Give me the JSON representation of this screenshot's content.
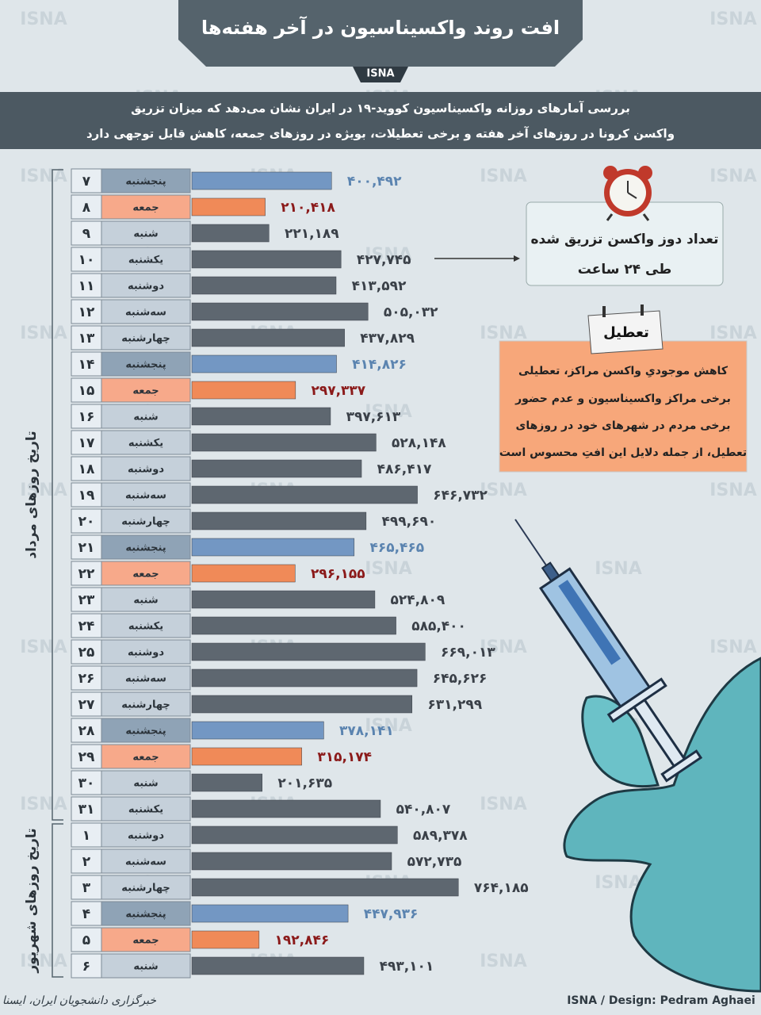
{
  "chart_data": {
    "type": "bar",
    "title": "افت روند واکسیناسیون در آخر هفته‌ها",
    "badge": "ISNA",
    "subtitle": [
      "بررسی آمارهای روزانه واکسیناسیون کووید-۱۹ در ایران نشان می‌دهد که میزان تزریق",
      "واکسن کرونا در روزهای آخر هفته و برخی تعطیلات، بویژه در روزهای جمعه، کاهش قابل توجهی دارد"
    ],
    "watermark": "ISNA",
    "xlim": [
      0,
      1000000
    ],
    "groups": [
      {
        "label": "تاریخ روزهای مرداد",
        "days": [
          "۷",
          "۸",
          "۹",
          "۱۰",
          "۱۱",
          "۱۲",
          "۱۳",
          "۱۴",
          "۱۵",
          "۱۶",
          "۱۷",
          "۱۸",
          "۱۹",
          "۲۰",
          "۲۱",
          "۲۲",
          "۲۳",
          "۲۴",
          "۲۵",
          "۲۶",
          "۲۷",
          "۲۸",
          "۲۹",
          "۳۰",
          "۳۱"
        ],
        "weekdays": [
          "پنجشنبه",
          "جمعه",
          "شنبه",
          "یکشنبه",
          "دوشنبه",
          "سه‌شنبه",
          "چهارشنبه",
          "پنجشنبه",
          "جمعه",
          "شنبه",
          "یکشنبه",
          "دوشنبه",
          "سه‌شنبه",
          "چهارشنبه",
          "پنجشنبه",
          "جمعه",
          "شنبه",
          "یکشنبه",
          "دوشنبه",
          "سه‌شنبه",
          "چهارشنبه",
          "پنجشنبه",
          "جمعه",
          "شنبه",
          "یکشنبه"
        ],
        "values": [
          400492,
          210418,
          221189,
          427745,
          413592,
          505032,
          437829,
          414826,
          297337,
          397613,
          528148,
          486417,
          646732,
          499690,
          465465,
          296155,
          524809,
          585400,
          669013,
          645626,
          631299,
          378141,
          315174,
          201635,
          540807
        ],
        "value_labels": [
          "۴۰۰,۴۹۲",
          "۲۱۰,۴۱۸",
          "۲۲۱,۱۸۹",
          "۴۲۷,۷۴۵",
          "۴۱۳,۵۹۲",
          "۵۰۵,۰۳۲",
          "۴۳۷,۸۲۹",
          "۴۱۴,۸۲۶",
          "۲۹۷,۳۳۷",
          "۳۹۷,۶۱۳",
          "۵۲۸,۱۴۸",
          "۴۸۶,۴۱۷",
          "۶۴۶,۷۳۲",
          "۴۹۹,۶۹۰",
          "۴۶۵,۴۶۵",
          "۲۹۶,۱۵۵",
          "۵۲۴,۸۰۹",
          "۵۸۵,۴۰۰",
          "۶۶۹,۰۱۳",
          "۶۴۵,۶۲۶",
          "۶۳۱,۲۹۹",
          "۳۷۸,۱۴۱",
          "۳۱۵,۱۷۴",
          "۲۰۱,۶۳۵",
          "۵۴۰,۸۰۷"
        ],
        "colors": [
          "#7397c3",
          "#f08a58",
          "#5e6770",
          "#5e6770",
          "#5e6770",
          "#5e6770",
          "#5e6770",
          "#7397c3",
          "#f08a58",
          "#5e6770",
          "#5e6770",
          "#5e6770",
          "#5e6770",
          "#5e6770",
          "#7397c3",
          "#f08a58",
          "#5e6770",
          "#5e6770",
          "#5e6770",
          "#5e6770",
          "#5e6770",
          "#7397c3",
          "#f08a58",
          "#5e6770",
          "#5e6770"
        ],
        "cell_colors": [
          "#8fa3b6",
          "#f7a98a",
          "#c5d0da",
          "#c5d0da",
          "#c5d0da",
          "#c5d0da",
          "#c5d0da",
          "#8fa3b6",
          "#f7a98a",
          "#c5d0da",
          "#c5d0da",
          "#c5d0da",
          "#c5d0da",
          "#c5d0da",
          "#8fa3b6",
          "#f7a98a",
          "#c5d0da",
          "#c5d0da",
          "#c5d0da",
          "#c5d0da",
          "#c5d0da",
          "#8fa3b6",
          "#f7a98a",
          "#c5d0da",
          "#c5d0da"
        ],
        "label_colors": [
          "#5b84b0",
          "#8b1a1a",
          "#3a4048",
          "#3a4048",
          "#3a4048",
          "#3a4048",
          "#3a4048",
          "#5b84b0",
          "#8b1a1a",
          "#3a4048",
          "#3a4048",
          "#3a4048",
          "#3a4048",
          "#3a4048",
          "#5b84b0",
          "#8b1a1a",
          "#3a4048",
          "#3a4048",
          "#3a4048",
          "#3a4048",
          "#3a4048",
          "#5b84b0",
          "#8b1a1a",
          "#3a4048",
          "#3a4048"
        ]
      },
      {
        "label": "تاریخ روزهای شهریور",
        "days": [
          "۱",
          "۲",
          "۳",
          "۴",
          "۵",
          "۶"
        ],
        "weekdays": [
          "دوشنبه",
          "سه‌شنبه",
          "چهارشنبه",
          "پنجشنبه",
          "جمعه",
          "شنبه"
        ],
        "values": [
          589378,
          572735,
          764185,
          447936,
          192846,
          493101
        ],
        "value_labels": [
          "۵۸۹,۳۷۸",
          "۵۷۲,۷۳۵",
          "۷۶۴,۱۸۵",
          "۴۴۷,۹۳۶",
          "۱۹۲,۸۴۶",
          "۴۹۳,۱۰۱"
        ],
        "colors": [
          "#5e6770",
          "#5e6770",
          "#5e6770",
          "#7397c3",
          "#f08a58",
          "#5e6770"
        ],
        "cell_colors": [
          "#c5d0da",
          "#c5d0da",
          "#c5d0da",
          "#8fa3b6",
          "#f7a98a",
          "#c5d0da"
        ],
        "label_colors": [
          "#3a4048",
          "#3a4048",
          "#3a4048",
          "#5b84b0",
          "#8b1a1a",
          "#3a4048"
        ]
      }
    ],
    "callout": [
      "تعداد دوز واکسن تزریق شده",
      "طی ۲۴ ساعت"
    ],
    "holiday_tag": "تعطیل",
    "holiday_note": [
      "کاهش موجودیِ واکسن مراکز، تعطیلی",
      "برخی مراکز واکسیناسیون و عدم حضور",
      "برخی مردم در شهرهای خود در روزهای",
      "تعطیل، از جمله دلایل این افتِ محسوس است"
    ],
    "credit": "ISNA / Design: Pedram Aghaei",
    "agency": "خبرگزاری دانشجویان ایران، ایسنا"
  }
}
